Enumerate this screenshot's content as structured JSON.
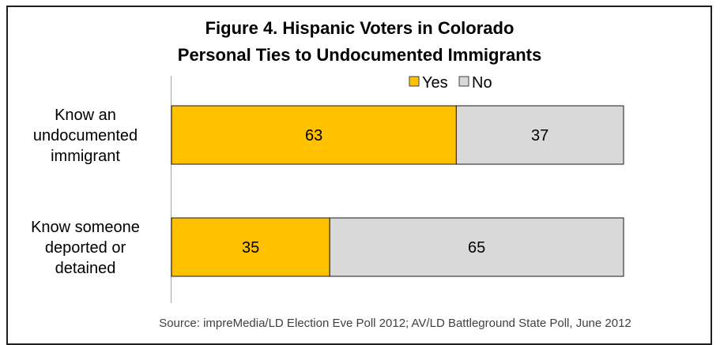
{
  "chart_data": {
    "type": "bar",
    "orientation": "horizontal",
    "stacked": true,
    "title_line1": "Figure 4. Hispanic Voters in Colorado",
    "title_line2": "Personal Ties to Undocumented Immigrants",
    "categories": [
      [
        "Know an",
        "undocumented",
        "immigrant"
      ],
      [
        "Know someone",
        "deported or",
        "detained"
      ]
    ],
    "series": [
      {
        "name": "Yes",
        "values": [
          63,
          35
        ],
        "color": "#FFC000"
      },
      {
        "name": "No",
        "values": [
          37,
          65
        ],
        "color": "#D9D9D9"
      }
    ],
    "xlim": [
      0,
      100
    ],
    "grid": false,
    "legend_position": "top-right",
    "source": "Source:  impreMedia/LD Election Eve Poll 2012; AV/LD Battleground State Poll, June 2012"
  }
}
